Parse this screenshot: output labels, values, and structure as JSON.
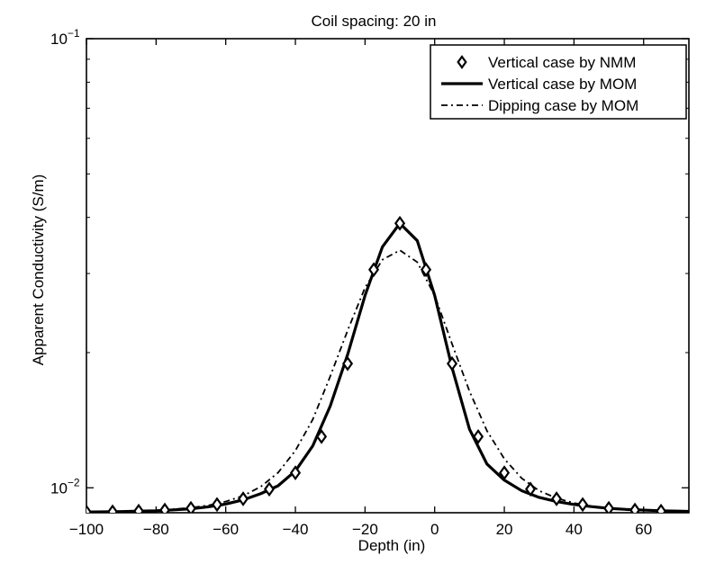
{
  "chart_data": {
    "type": "line",
    "title": "Coil spacing: 20 in",
    "xlabel": "Depth (in)",
    "ylabel": "Apparent Conductivity (S/m)",
    "xlim": [
      -100,
      73
    ],
    "ylim": [
      0.0088,
      0.1
    ],
    "yscale": "log",
    "grid": false,
    "legend_position": "top-right",
    "x_ticks": [
      -100,
      -80,
      -60,
      -40,
      -20,
      0,
      20,
      40,
      60
    ],
    "x_tick_labels": [
      "−100",
      "−80",
      "−60",
      "−40",
      "−20",
      "0",
      "20",
      "40",
      "60"
    ],
    "y_ticks": [
      {
        "value": 0.01,
        "base": "10",
        "exponent": "−2"
      },
      {
        "value": 0.1,
        "base": "10",
        "exponent": "−1"
      }
    ],
    "series": [
      {
        "name": "Vertical case by NMM",
        "style": "diamond-markers",
        "x": [
          -100,
          -92.5,
          -85,
          -77.5,
          -70,
          -62.5,
          -55,
          -47.5,
          -40,
          -32.5,
          -25,
          -17.5,
          -10,
          -2.5,
          5,
          12.5,
          20,
          27.5,
          35,
          42.5,
          50,
          57.5,
          65
        ],
        "values": [
          0.00883,
          0.00884,
          0.00887,
          0.00892,
          0.009,
          0.00918,
          0.00945,
          0.00993,
          0.0108,
          0.013,
          0.0189,
          0.0306,
          0.0388,
          0.0306,
          0.0189,
          0.013,
          0.0108,
          0.00993,
          0.00945,
          0.00918,
          0.009,
          0.00892,
          0.00887
        ]
      },
      {
        "name": "Vertical case by MOM",
        "style": "solid",
        "x": [
          -100,
          -95,
          -90,
          -85,
          -80,
          -75,
          -70,
          -65,
          -60,
          -55,
          -50,
          -45,
          -40,
          -35,
          -30,
          -25,
          -20,
          -15,
          -10,
          -5,
          0,
          5,
          10,
          15,
          20,
          25,
          30,
          35,
          40,
          45,
          50,
          55,
          60,
          65,
          70,
          73
        ],
        "values": [
          0.00883,
          0.00884,
          0.00885,
          0.00887,
          0.00889,
          0.00893,
          0.00898,
          0.00907,
          0.0092,
          0.0094,
          0.0097,
          0.0101,
          0.0109,
          0.0124,
          0.0152,
          0.0198,
          0.0268,
          0.0344,
          0.0388,
          0.0355,
          0.0268,
          0.0185,
          0.0135,
          0.0113,
          0.0104,
          0.00985,
          0.00952,
          0.00932,
          0.00918,
          0.00908,
          0.009,
          0.00895,
          0.00892,
          0.00889,
          0.00887,
          0.00886
        ]
      },
      {
        "name": "Dipping case by MOM",
        "style": "dash-dot",
        "x": [
          -100,
          -95,
          -90,
          -85,
          -80,
          -75,
          -70,
          -65,
          -60,
          -55,
          -50,
          -45,
          -40,
          -35,
          -30,
          -25,
          -20,
          -15,
          -10,
          -5,
          0,
          5,
          10,
          15,
          20,
          25,
          30,
          35,
          40,
          45,
          50,
          55,
          60,
          65,
          70,
          73
        ],
        "values": [
          0.00884,
          0.00885,
          0.00886,
          0.00888,
          0.00891,
          0.00896,
          0.00903,
          0.00914,
          0.00932,
          0.0096,
          0.01005,
          0.0108,
          0.0121,
          0.0142,
          0.0177,
          0.0224,
          0.0279,
          0.0322,
          0.0338,
          0.0318,
          0.0268,
          0.0209,
          0.0164,
          0.0134,
          0.0116,
          0.0105,
          0.00985,
          0.00948,
          0.00925,
          0.0091,
          0.009,
          0.00895,
          0.00891,
          0.00889,
          0.00887,
          0.00886
        ]
      }
    ]
  }
}
